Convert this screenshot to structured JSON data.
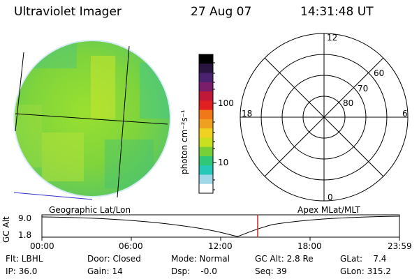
{
  "header": {
    "instrument": "Ultraviolet Imager",
    "date": "27 Aug 07",
    "time": "14:31:48 UT"
  },
  "colorbar": {
    "unit_label": "photon cm⁻²s⁻¹",
    "ticks": [
      "100",
      "10"
    ],
    "colors": [
      "#000000",
      "#2a1540",
      "#4b2270",
      "#7a1e6c",
      "#c01838",
      "#e02020",
      "#f07818",
      "#f0a020",
      "#f0d020",
      "#c8e020",
      "#78d038",
      "#30c878",
      "#28c8b8",
      "#a0d8e8",
      "#ffffff"
    ]
  },
  "polar_plot": {
    "top_label": "12",
    "left_label": "18",
    "right_label": "6",
    "bottom_label": "0",
    "lat_labels": [
      "60",
      "70",
      "80"
    ]
  },
  "altitude_strip": {
    "left_caption": "Geographic Lat/Lon",
    "right_caption": "Apex MLat/MLT",
    "axis_title": "GC Alt",
    "y_ticks": [
      "9.0",
      "1.8"
    ],
    "x_ticks": [
      "00:00",
      "06:00",
      "12:00",
      "18:00",
      "23:59"
    ],
    "marker_color": "#d02020"
  },
  "status": {
    "flt": "Flt: LBHL",
    "ip": "IP: 36.0",
    "door": "Door: Closed",
    "gain": "Gain: 14",
    "mode": "Mode: Normal",
    "dsp": "Dsp:    -0.0",
    "gc_alt": "GC Alt: 2.8 Re",
    "seq": "Seq: 39",
    "glat": "GLat:    7.4",
    "glon": "GLon: 315.2"
  }
}
